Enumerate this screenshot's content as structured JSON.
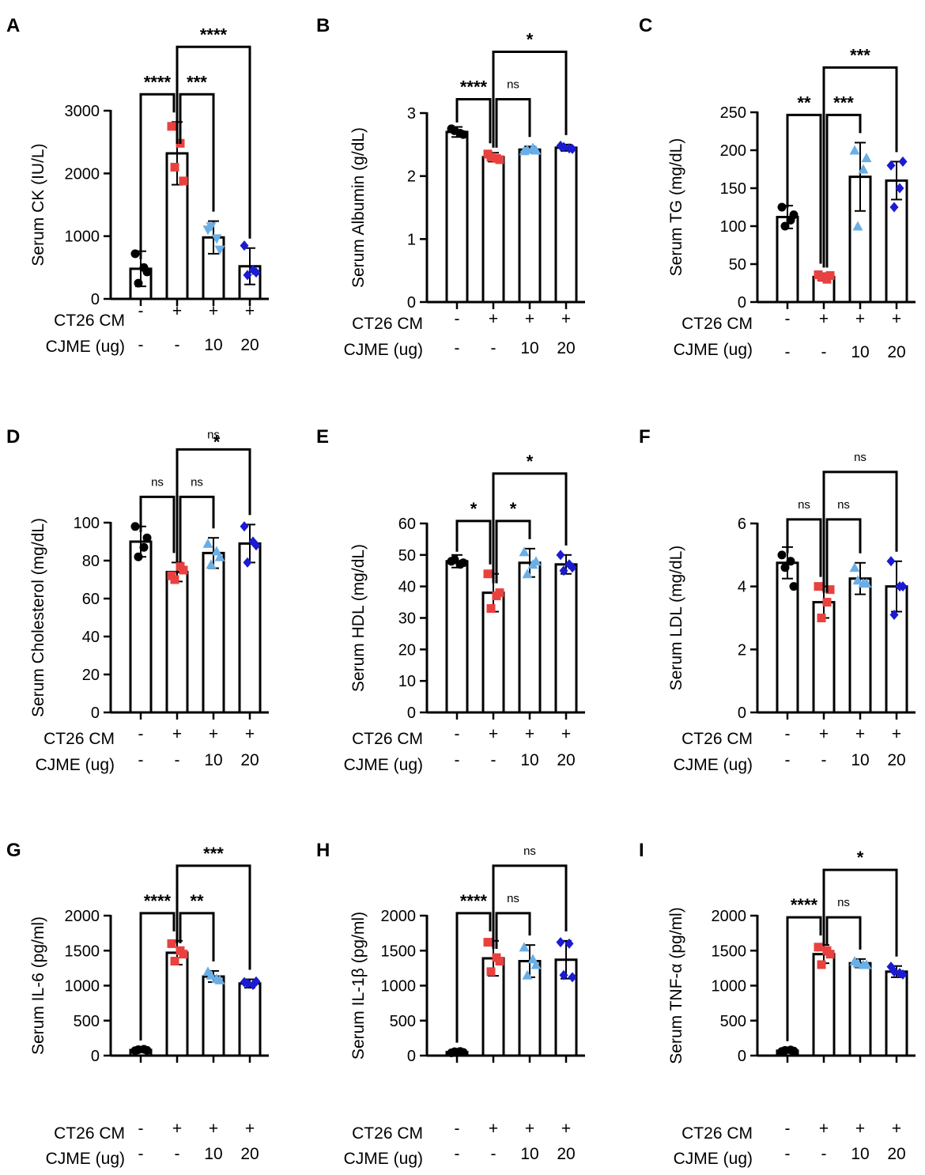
{
  "figure": {
    "colors": {
      "axis": "#000000",
      "black": "#000000",
      "red": "#e8413f",
      "light_blue": "#6aaee6",
      "dark_blue": "#1b1bd2"
    }
  },
  "chart_data": [
    {
      "id": "A",
      "panel_letter": "A",
      "type": "bar",
      "ylabel": "Serum CK (IU/L)",
      "ylim": [
        0,
        3000
      ],
      "yticks": [
        0,
        1000,
        2000,
        3000
      ],
      "row_labels": [
        "CT26 CM",
        "CJME (ug)"
      ],
      "categories": [
        [
          "-",
          "-"
        ],
        [
          "+",
          "-"
        ],
        [
          "+",
          "10"
        ],
        [
          "+",
          "20"
        ]
      ],
      "point_colors": [
        "black",
        "red",
        "light_blue",
        "dark_blue"
      ],
      "markers": [
        "circle",
        "square",
        "triangle-down",
        "diamond"
      ],
      "values": [
        480,
        2320,
        980,
        520
      ],
      "errors": [
        280,
        500,
        260,
        290
      ],
      "points": [
        [
          720,
          500,
          250,
          430
        ],
        [
          2750,
          2480,
          2100,
          1880
        ],
        [
          1100,
          960,
          1150,
          780
        ],
        [
          850,
          460,
          380,
          420
        ]
      ],
      "comparisons": [
        {
          "from": 0,
          "to": 1,
          "label": "****",
          "level": 1
        },
        {
          "from": 1,
          "to": 2,
          "label": "***",
          "level": 1
        },
        {
          "from": 1,
          "to": 3,
          "label": "****",
          "level": 2
        }
      ]
    },
    {
      "id": "B",
      "panel_letter": "B",
      "type": "bar",
      "ylabel": "Serum Albumin (g/dL)",
      "ylim": [
        0,
        3
      ],
      "yticks": [
        0,
        1,
        2,
        3
      ],
      "row_labels": [
        "CT26 CM",
        "CJME (ug)"
      ],
      "categories": [
        [
          "-",
          "-"
        ],
        [
          "+",
          "-"
        ],
        [
          "+",
          "10"
        ],
        [
          "+",
          "20"
        ]
      ],
      "point_colors": [
        "black",
        "red",
        "light_blue",
        "dark_blue"
      ],
      "markers": [
        "circle",
        "square",
        "triangle",
        "diamond"
      ],
      "values": [
        2.7,
        2.3,
        2.42,
        2.45
      ],
      "errors": [
        0.08,
        0.07,
        0.05,
        0.05
      ],
      "points": [
        [
          2.75,
          2.68,
          2.72,
          2.66
        ],
        [
          2.35,
          2.28,
          2.3,
          2.26
        ],
        [
          2.4,
          2.45,
          2.42,
          2.41
        ],
        [
          2.48,
          2.44,
          2.46,
          2.43
        ]
      ],
      "comparisons": [
        {
          "from": 0,
          "to": 1,
          "label": "****",
          "level": 1
        },
        {
          "from": 1,
          "to": 2,
          "label": "ns",
          "level": 1
        },
        {
          "from": 1,
          "to": 3,
          "label": "*",
          "level": 2
        }
      ]
    },
    {
      "id": "C",
      "panel_letter": "C",
      "type": "bar",
      "ylabel": "Serum TG (mg/dL)",
      "ylim": [
        0,
        250
      ],
      "yticks": [
        0,
        50,
        100,
        150,
        200,
        250
      ],
      "row_labels": [
        "CT26 CM",
        "CJME (ug)"
      ],
      "categories": [
        [
          "-",
          "-"
        ],
        [
          "+",
          "-"
        ],
        [
          "+",
          "10"
        ],
        [
          "+",
          "20"
        ]
      ],
      "point_colors": [
        "black",
        "red",
        "light_blue",
        "dark_blue"
      ],
      "markers": [
        "circle",
        "square",
        "triangle",
        "diamond"
      ],
      "values": [
        112,
        33,
        165,
        160
      ],
      "errors": [
        15,
        5,
        45,
        25
      ],
      "points": [
        [
          125,
          108,
          100,
          115
        ],
        [
          36,
          30,
          33,
          35
        ],
        [
          200,
          175,
          100,
          190
        ],
        [
          180,
          150,
          125,
          185
        ]
      ],
      "comparisons": [
        {
          "from": 0,
          "to": 1,
          "label": "**",
          "level": 1
        },
        {
          "from": 1,
          "to": 2,
          "label": "***",
          "level": 1
        },
        {
          "from": 1,
          "to": 3,
          "label": "***",
          "level": 2
        }
      ]
    },
    {
      "id": "D",
      "panel_letter": "D",
      "type": "bar",
      "ylabel": "Serum Cholesterol (mg/dL)",
      "ylim": [
        0,
        100
      ],
      "yticks": [
        0,
        20,
        40,
        60,
        80,
        100
      ],
      "row_labels": [
        "CT26 CM",
        "CJME (ug)"
      ],
      "categories": [
        [
          "-",
          "-"
        ],
        [
          "+",
          "-"
        ],
        [
          "+",
          "10"
        ],
        [
          "+",
          "20"
        ]
      ],
      "point_colors": [
        "black",
        "red",
        "light_blue",
        "dark_blue"
      ],
      "markers": [
        "circle",
        "square",
        "triangle",
        "diamond"
      ],
      "values": [
        90,
        74,
        84,
        89
      ],
      "errors": [
        8,
        5,
        8,
        10
      ],
      "points": [
        [
          98,
          87,
          82,
          92
        ],
        [
          72,
          77,
          70,
          75
        ],
        [
          89,
          85,
          78,
          82
        ],
        [
          98,
          90,
          79,
          88
        ]
      ],
      "comparisons": [
        {
          "from": 0,
          "to": 1,
          "label": "ns",
          "level": 1
        },
        {
          "from": 1,
          "to": 2,
          "label": "ns",
          "level": 1
        },
        {
          "from": 1,
          "to": 3,
          "label": "ns",
          "level": 2
        }
      ],
      "extra_annotation": {
        "label": "*",
        "at": 3
      }
    },
    {
      "id": "E",
      "panel_letter": "E",
      "type": "bar",
      "ylabel": "Serum HDL (mg/dL)",
      "ylim": [
        0,
        60
      ],
      "yticks": [
        0,
        10,
        20,
        30,
        40,
        50,
        60
      ],
      "row_labels": [
        "CT26 CM",
        "CJME (ug)"
      ],
      "categories": [
        [
          "-",
          "-"
        ],
        [
          "+",
          "-"
        ],
        [
          "+",
          "10"
        ],
        [
          "+",
          "20"
        ]
      ],
      "point_colors": [
        "black",
        "red",
        "light_blue",
        "dark_blue"
      ],
      "markers": [
        "circle",
        "square",
        "triangle",
        "diamond"
      ],
      "values": [
        48,
        38,
        47.5,
        47
      ],
      "errors": [
        2,
        6,
        4.5,
        3
      ],
      "points": [
        [
          48,
          47,
          48.5,
          47.5
        ],
        [
          44,
          37,
          33,
          38
        ],
        [
          51,
          47,
          44,
          48
        ],
        [
          50,
          47,
          45,
          46
        ]
      ],
      "comparisons": [
        {
          "from": 0,
          "to": 1,
          "label": "*",
          "level": 1
        },
        {
          "from": 1,
          "to": 2,
          "label": "*",
          "level": 1
        },
        {
          "from": 1,
          "to": 3,
          "label": "*",
          "level": 2
        }
      ]
    },
    {
      "id": "F",
      "panel_letter": "F",
      "type": "bar",
      "ylabel": "Serum LDL (mg/dL)",
      "ylim": [
        0,
        6
      ],
      "yticks": [
        0,
        2,
        4,
        6
      ],
      "row_labels": [
        "CT26 CM",
        "CJME (ug)"
      ],
      "categories": [
        [
          "-",
          "-"
        ],
        [
          "+",
          "-"
        ],
        [
          "+",
          "10"
        ],
        [
          "+",
          "20"
        ]
      ],
      "point_colors": [
        "black",
        "red",
        "light_blue",
        "dark_blue"
      ],
      "markers": [
        "circle",
        "square",
        "triangle",
        "diamond"
      ],
      "values": [
        4.75,
        3.5,
        4.25,
        4.0
      ],
      "errors": [
        0.5,
        0.5,
        0.5,
        0.8
      ],
      "points": [
        [
          5.0,
          4.8,
          4.6,
          4.0
        ],
        [
          4.0,
          3.5,
          3.0,
          3.9
        ],
        [
          4.6,
          4.1,
          4.2,
          4.1
        ],
        [
          4.8,
          4.0,
          3.1,
          4.0
        ]
      ],
      "comparisons": [
        {
          "from": 0,
          "to": 1,
          "label": "ns",
          "level": 1
        },
        {
          "from": 1,
          "to": 2,
          "label": "ns",
          "level": 1
        },
        {
          "from": 1,
          "to": 3,
          "label": "ns",
          "level": 2
        }
      ]
    },
    {
      "id": "G",
      "panel_letter": "G",
      "type": "bar",
      "ylabel": "Serum IL-6 (pg/ml)",
      "ylim": [
        0,
        2000
      ],
      "yticks": [
        0,
        500,
        1000,
        1500,
        2000
      ],
      "row_labels": [
        "CT26 CM",
        "CJME (ug)"
      ],
      "categories": [
        [
          "-",
          "-"
        ],
        [
          "+",
          "-"
        ],
        [
          "+",
          "10"
        ],
        [
          "+",
          "20"
        ]
      ],
      "point_colors": [
        "black",
        "red",
        "light_blue",
        "dark_blue"
      ],
      "markers": [
        "circle",
        "square",
        "triangle",
        "diamond"
      ],
      "values": [
        80,
        1470,
        1130,
        1030
      ],
      "errors": [
        20,
        170,
        80,
        60
      ],
      "points": [
        [
          70,
          90,
          85,
          75
        ],
        [
          1600,
          1500,
          1350,
          1450
        ],
        [
          1200,
          1100,
          1150,
          1080
        ],
        [
          1050,
          1010,
          1030,
          1060
        ]
      ],
      "comparisons": [
        {
          "from": 0,
          "to": 1,
          "label": "****",
          "level": 1
        },
        {
          "from": 1,
          "to": 2,
          "label": "**",
          "level": 1
        },
        {
          "from": 1,
          "to": 3,
          "label": "***",
          "level": 2
        }
      ]
    },
    {
      "id": "H",
      "panel_letter": "H",
      "type": "bar",
      "ylabel": "Serum IL-1β (pg/ml)",
      "ylim": [
        0,
        2000
      ],
      "yticks": [
        0,
        500,
        1000,
        1500,
        2000
      ],
      "row_labels": [
        "CT26 CM",
        "CJME (ug)"
      ],
      "categories": [
        [
          "-",
          "-"
        ],
        [
          "+",
          "-"
        ],
        [
          "+",
          "10"
        ],
        [
          "+",
          "20"
        ]
      ],
      "point_colors": [
        "black",
        "red",
        "light_blue",
        "dark_blue"
      ],
      "markers": [
        "circle",
        "square",
        "triangle",
        "diamond"
      ],
      "values": [
        50,
        1390,
        1350,
        1370
      ],
      "errors": [
        20,
        250,
        230,
        270
      ],
      "points": [
        [
          40,
          60,
          55,
          45
        ],
        [
          1620,
          1400,
          1200,
          1350
        ],
        [
          1550,
          1380,
          1150,
          1300
        ],
        [
          1620,
          1600,
          1150,
          1120
        ]
      ],
      "comparisons": [
        {
          "from": 0,
          "to": 1,
          "label": "****",
          "level": 1
        },
        {
          "from": 1,
          "to": 2,
          "label": "ns",
          "level": 1
        },
        {
          "from": 1,
          "to": 3,
          "label": "ns",
          "level": 2
        }
      ]
    },
    {
      "id": "I",
      "panel_letter": "I",
      "type": "bar",
      "ylabel": "Serum TNF-α (pg/ml)",
      "ylim": [
        0,
        2000
      ],
      "yticks": [
        0,
        500,
        1000,
        1500,
        2000
      ],
      "row_labels": [
        "CT26 CM",
        "CJME (ug)"
      ],
      "categories": [
        [
          "-",
          "-"
        ],
        [
          "+",
          "-"
        ],
        [
          "+",
          "10"
        ],
        [
          "+",
          "20"
        ]
      ],
      "point_colors": [
        "black",
        "red",
        "light_blue",
        "dark_blue"
      ],
      "markers": [
        "circle",
        "square",
        "triangle",
        "diamond"
      ],
      "values": [
        70,
        1450,
        1320,
        1200
      ],
      "errors": [
        15,
        130,
        60,
        80
      ],
      "points": [
        [
          60,
          80,
          75,
          65
        ],
        [
          1550,
          1500,
          1300,
          1450
        ],
        [
          1350,
          1300,
          1320,
          1300
        ],
        [
          1270,
          1180,
          1200,
          1160
        ]
      ],
      "comparisons": [
        {
          "from": 0,
          "to": 1,
          "label": "****",
          "level": 1
        },
        {
          "from": 1,
          "to": 2,
          "label": "ns",
          "level": 1
        },
        {
          "from": 1,
          "to": 3,
          "label": "*",
          "level": 2
        }
      ]
    }
  ]
}
